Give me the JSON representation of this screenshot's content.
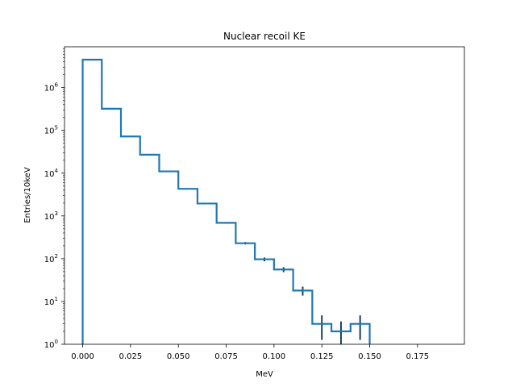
{
  "chart_data": {
    "type": "histogram",
    "title": "Nuclear recoil KE",
    "xlabel": "MeV",
    "ylabel": "Entries/10keV",
    "xlim": [
      -0.0095,
      0.1995
    ],
    "ylim": [
      1,
      9000000
    ],
    "yscale": "log",
    "grid": false,
    "x_ticks": [
      {
        "value": 0.0,
        "label": "0.000"
      },
      {
        "value": 0.025,
        "label": "0.025"
      },
      {
        "value": 0.05,
        "label": "0.050"
      },
      {
        "value": 0.075,
        "label": "0.075"
      },
      {
        "value": 0.1,
        "label": "0.100"
      },
      {
        "value": 0.125,
        "label": "0.125"
      },
      {
        "value": 0.15,
        "label": "0.150"
      },
      {
        "value": 0.175,
        "label": "0.175"
      }
    ],
    "y_ticks": [
      {
        "value": 1,
        "label_base": "10",
        "label_exp": "0"
      },
      {
        "value": 10,
        "label_base": "10",
        "label_exp": "1"
      },
      {
        "value": 100,
        "label_base": "10",
        "label_exp": "2"
      },
      {
        "value": 1000,
        "label_base": "10",
        "label_exp": "3"
      },
      {
        "value": 10000,
        "label_base": "10",
        "label_exp": "4"
      },
      {
        "value": 100000,
        "label_base": "10",
        "label_exp": "5"
      },
      {
        "value": 1000000,
        "label_base": "10",
        "label_exp": "6"
      }
    ],
    "bin_edges": [
      0.0,
      0.01,
      0.02,
      0.03,
      0.04,
      0.05,
      0.06,
      0.07,
      0.08,
      0.09,
      0.1,
      0.11,
      0.12,
      0.13,
      0.14,
      0.15
    ],
    "values": [
      4500000,
      320000,
      72000,
      27000,
      11000,
      4300,
      1950,
      690,
      230,
      97,
      56,
      18,
      3,
      2,
      3
    ],
    "line_color": "#1f77b4",
    "errorbar_color": "#1a3f5f"
  }
}
